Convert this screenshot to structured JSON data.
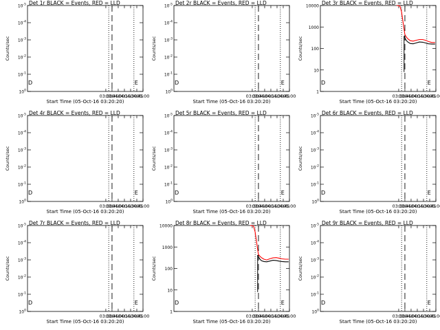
{
  "colors": {
    "events": "#000000",
    "lld": "#ff0000",
    "background": "#ffffff"
  },
  "chart_data": [
    {
      "type": "line",
      "title": "Det 1r BLACK = Events, RED = LLD",
      "xlabel": "Start Time (05-Oct-16 03:20:20)",
      "ylabel": "Counts/sec",
      "x_ticks": [
        "03:30",
        "03:45",
        "04:00",
        "04:15",
        "04:30",
        "04:45",
        "05:00"
      ],
      "y_scale": "log",
      "y_ticks": [
        "10^0",
        "10^-1",
        "10^-2",
        "10^-3",
        "10^-4",
        "10^-5"
      ],
      "ylim": [
        1e-05,
        1
      ],
      "markers": [
        "D",
        "E"
      ],
      "series": []
    },
    {
      "type": "line",
      "title": "Det 2r BLACK = Events, RED = LLD",
      "xlabel": "Start Time (05-Oct-16 03:20:20)",
      "ylabel": "Counts/sec",
      "x_ticks": [
        "03:30",
        "03:45",
        "04:00",
        "04:15",
        "04:30",
        "04:45",
        "05:00"
      ],
      "y_scale": "log",
      "y_ticks": [
        "10^0",
        "10^-1",
        "10^-2",
        "10^-3",
        "10^-4",
        "10^-5"
      ],
      "ylim": [
        1e-05,
        1
      ],
      "markers": [
        "D",
        "E"
      ],
      "series": []
    },
    {
      "type": "line",
      "title": "Det 3r BLACK = Events, RED = LLD",
      "xlabel": "Start Time (05-Oct-16 03:20:20)",
      "ylabel": "Counts/sec",
      "x_ticks": [
        "03:30",
        "03:45",
        "04:00",
        "04:15",
        "04:30",
        "04:45",
        "05:00"
      ],
      "y_scale": "log",
      "y_ticks": [
        "1",
        "10",
        "100",
        "1000",
        "10000"
      ],
      "ylim": [
        1,
        10000
      ],
      "markers": [
        "D",
        "E"
      ],
      "series": [
        {
          "color": "#ff0000",
          "x": [
            "03:25",
            "03:33",
            "03:37",
            "03:40",
            "03:43",
            "03:45",
            "03:48",
            "03:52",
            "03:58",
            "04:05",
            "04:12",
            "04:20",
            "04:28",
            "04:35",
            "04:42",
            "04:50",
            "04:58"
          ],
          "y": [
            10000,
            9500,
            5000,
            2000,
            800,
            450,
            350,
            280,
            230,
            220,
            240,
            260,
            260,
            240,
            210,
            190,
            190
          ]
        },
        {
          "color": "#000000",
          "x": [
            "03:43",
            "03:45",
            "03:48",
            "03:52",
            "03:58",
            "04:05",
            "04:12",
            "04:20",
            "04:28",
            "04:35",
            "04:42",
            "04:50",
            "04:58"
          ],
          "y": [
            380,
            320,
            240,
            200,
            170,
            165,
            180,
            200,
            195,
            180,
            165,
            160,
            160
          ]
        }
      ]
    },
    {
      "type": "line",
      "title": "Det 4r BLACK = Events, RED = LLD",
      "xlabel": "Start Time (05-Oct-16 03:20:20)",
      "ylabel": "Counts/sec",
      "x_ticks": [
        "03:30",
        "03:45",
        "04:00",
        "04:15",
        "04:30",
        "04:45",
        "05:00"
      ],
      "y_scale": "log",
      "y_ticks": [
        "10^0",
        "10^-1",
        "10^-2",
        "10^-3",
        "10^-4",
        "10^-5"
      ],
      "ylim": [
        1e-05,
        1
      ],
      "markers": [
        "D",
        "E"
      ],
      "series": []
    },
    {
      "type": "line",
      "title": "Det 5r BLACK = Events, RED = LLD",
      "xlabel": "Start Time (05-Oct-16 03:20:20)",
      "ylabel": "Counts/sec",
      "x_ticks": [
        "03:30",
        "03:45",
        "04:00",
        "04:15",
        "04:30",
        "04:45",
        "05:00"
      ],
      "y_scale": "log",
      "y_ticks": [
        "10^0",
        "10^-1",
        "10^-2",
        "10^-3",
        "10^-4",
        "10^-5"
      ],
      "ylim": [
        1e-05,
        1
      ],
      "markers": [
        "D",
        "E"
      ],
      "series": []
    },
    {
      "type": "line",
      "title": "Det 6r BLACK = Events, RED = LLD",
      "xlabel": "Start Time (05-Oct-16 03:20:20)",
      "ylabel": "Counts/sec",
      "x_ticks": [
        "03:30",
        "03:45",
        "04:00",
        "04:15",
        "04:30",
        "04:45",
        "05:00"
      ],
      "y_scale": "log",
      "y_ticks": [
        "10^0",
        "10^-1",
        "10^-2",
        "10^-3",
        "10^-4",
        "10^-5"
      ],
      "ylim": [
        1e-05,
        1
      ],
      "markers": [
        "D",
        "E"
      ],
      "series": []
    },
    {
      "type": "line",
      "title": "Det 7r BLACK = Events, RED = LLD",
      "xlabel": "Start Time (05-Oct-16 03:20:20)",
      "ylabel": "Counts/sec",
      "x_ticks": [
        "03:30",
        "03:45",
        "04:00",
        "04:15",
        "04:30",
        "04:45",
        "05:00"
      ],
      "y_scale": "log",
      "y_ticks": [
        "10^0",
        "10^-1",
        "10^-2",
        "10^-3",
        "10^-4",
        "10^-5"
      ],
      "ylim": [
        1e-05,
        1
      ],
      "markers": [
        "D",
        "E"
      ],
      "series": []
    },
    {
      "type": "line",
      "title": "Det 8r BLACK = Events, RED = LLD",
      "xlabel": "Start Time (05-Oct-16 03:20:20)",
      "ylabel": "Counts/sec",
      "x_ticks": [
        "03:30",
        "03:45",
        "04:00",
        "04:15",
        "04:30",
        "04:45",
        "05:00"
      ],
      "y_scale": "log",
      "y_ticks": [
        "1",
        "10",
        "100",
        "1000",
        "10000"
      ],
      "ylim": [
        1,
        10000
      ],
      "markers": [
        "D",
        "E"
      ],
      "series": [
        {
          "color": "#ff0000",
          "x": [
            "03:25",
            "03:33",
            "03:37",
            "03:40",
            "03:43",
            "03:45",
            "03:48",
            "03:52",
            "03:58",
            "04:05",
            "04:12",
            "04:20",
            "04:28",
            "04:35",
            "04:42",
            "04:50",
            "04:58"
          ],
          "y": [
            10000,
            9500,
            5000,
            2000,
            800,
            450,
            380,
            320,
            270,
            250,
            280,
            310,
            320,
            300,
            280,
            270,
            270
          ]
        },
        {
          "color": "#000000",
          "x": [
            "03:43",
            "03:45",
            "03:48",
            "03:52",
            "03:58",
            "04:05",
            "04:12",
            "04:20",
            "04:28",
            "04:35",
            "04:42",
            "04:50",
            "04:58"
          ],
          "y": [
            420,
            360,
            280,
            230,
            210,
            205,
            220,
            240,
            235,
            220,
            210,
            205,
            205
          ]
        }
      ]
    },
    {
      "type": "line",
      "title": "Det 9r BLACK = Events, RED = LLD",
      "xlabel": "Start Time (05-Oct-16 03:20:20)",
      "ylabel": "Counts/sec",
      "x_ticks": [
        "03:30",
        "03:45",
        "04:00",
        "04:15",
        "04:30",
        "04:45",
        "05:00"
      ],
      "y_scale": "log",
      "y_ticks": [
        "10^0",
        "10^-1",
        "10^-2",
        "10^-3",
        "10^-4",
        "10^-5"
      ],
      "ylim": [
        1e-05,
        1
      ],
      "markers": [
        "D",
        "E"
      ],
      "series": []
    }
  ]
}
